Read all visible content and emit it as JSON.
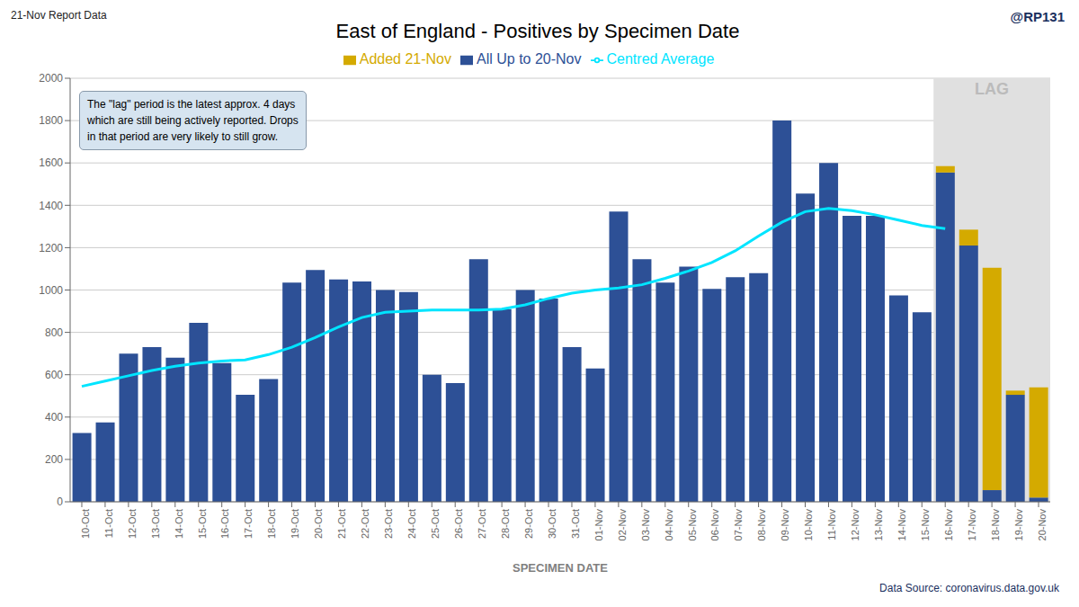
{
  "chart_data": {
    "type": "bar",
    "title": "East of England - Positives by Specimen Date",
    "xlabel": "SPECIMEN DATE",
    "annotations": [
      "21-Nov Report Data",
      "@RP131",
      "Data Source: coronavirus.data.gov.uk",
      "The \"lag\" period is the latest approx. 4 days\nwhich are still being actively reported.  Drops\nin that period are very likely to still grow."
    ],
    "regions": [
      {
        "text": "LAG",
        "x1": "16-Nov",
        "x2": "20-Nov",
        "color": "#e0e0e0"
      }
    ],
    "categories": [
      "10-Oct",
      "11-Oct",
      "12-Oct",
      "13-Oct",
      "14-Oct",
      "15-Oct",
      "16-Oct",
      "17-Oct",
      "18-Oct",
      "19-Oct",
      "20-Oct",
      "21-Oct",
      "22-Oct",
      "23-Oct",
      "24-Oct",
      "25-Oct",
      "26-Oct",
      "27-Oct",
      "28-Oct",
      "29-Oct",
      "30-Oct",
      "31-Oct",
      "01-Nov",
      "02-Nov",
      "03-Nov",
      "04-Nov",
      "05-Nov",
      "06-Nov",
      "07-Nov",
      "08-Nov",
      "09-Nov",
      "10-Nov",
      "11-Nov",
      "12-Nov",
      "13-Nov",
      "14-Nov",
      "15-Nov",
      "16-Nov",
      "17-Nov",
      "18-Nov",
      "19-Nov",
      "20-Nov"
    ],
    "series": [
      {
        "name": "All Up to 20-Nov",
        "type": "bar",
        "color": "#2d5096",
        "values": [
          325,
          375,
          700,
          730,
          680,
          845,
          655,
          505,
          580,
          1035,
          1095,
          1050,
          1040,
          1000,
          990,
          600,
          560,
          1145,
          910,
          1000,
          960,
          730,
          630,
          1370,
          1145,
          1035,
          1110,
          1005,
          1060,
          1080,
          1800,
          1455,
          1600,
          1350,
          1350,
          975,
          895,
          1555,
          1210,
          55,
          505,
          20
        ]
      },
      {
        "name": "Added 21-Nov",
        "type": "bar",
        "color": "#d4aa00",
        "values": [
          0,
          0,
          0,
          0,
          0,
          0,
          0,
          0,
          0,
          0,
          0,
          0,
          0,
          0,
          0,
          0,
          0,
          0,
          0,
          0,
          0,
          0,
          0,
          0,
          0,
          0,
          0,
          0,
          0,
          0,
          0,
          0,
          0,
          0,
          0,
          0,
          0,
          30,
          75,
          1050,
          20,
          520
        ]
      },
      {
        "name": "Centred Average",
        "type": "line",
        "color": "#00e5ff",
        "values": [
          545,
          570,
          595,
          620,
          640,
          655,
          665,
          670,
          695,
          730,
          775,
          825,
          870,
          895,
          900,
          905,
          905,
          905,
          910,
          930,
          960,
          985,
          1000,
          1010,
          1025,
          1055,
          1090,
          1130,
          1185,
          1255,
          1320,
          1370,
          1385,
          1375,
          1355,
          1330,
          1305,
          1290,
          null,
          null,
          null,
          null
        ]
      }
    ],
    "stacked": true,
    "ylim": [
      0,
      2000
    ],
    "yticks": [
      0,
      200,
      400,
      600,
      800,
      1000,
      1200,
      1400,
      1600,
      1800,
      2000
    ],
    "grid": true,
    "legend": "top"
  }
}
